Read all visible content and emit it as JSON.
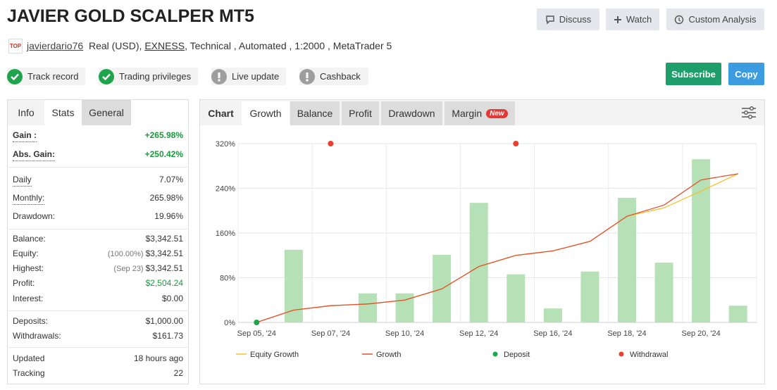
{
  "header": {
    "title": "JAVIER GOLD SCALPER MT5",
    "buttons": [
      "Discuss",
      "Watch",
      "Custom Analysis"
    ]
  },
  "account": {
    "logo": "TOP",
    "user": "javierdario76",
    "details_1": "Real (USD),",
    "broker": "EXNESS",
    "details_2": ", Technical , Automated , 1:2000 , MetaTrader 5"
  },
  "badges": [
    {
      "label": "Track record",
      "verified": true
    },
    {
      "label": "Trading privileges",
      "verified": true
    },
    {
      "label": "Live update",
      "verified": false
    },
    {
      "label": "Cashback",
      "verified": false
    }
  ],
  "actions": [
    "Subscribe",
    "Copy"
  ],
  "stats_tabs": [
    "Info",
    "Stats",
    "General"
  ],
  "stats": [
    [
      {
        "label": "Gain :",
        "value": "+265.98%"
      },
      {
        "label": "Abs. Gain:",
        "value": "+250.42%"
      }
    ],
    [
      {
        "label": "Daily",
        "value": "7.07%"
      },
      {
        "label": "Monthly:",
        "value": "265.98%"
      },
      {
        "label": "Drawdown:",
        "value": "19.96%"
      }
    ],
    [
      {
        "label": "Balance:",
        "value": "$3,342.51"
      },
      {
        "label": "Equity:",
        "note": "(100.00%)",
        "value": "$3,342.51"
      },
      {
        "label": "Highest:",
        "note": "(Sep 23)",
        "value": "$3,342.51"
      },
      {
        "label": "Profit:",
        "value": "$2,504.24"
      },
      {
        "label": "Interest:",
        "value": "$0.00"
      }
    ],
    [
      {
        "label": "Deposits:",
        "value": "$1,000.00"
      },
      {
        "label": "Withdrawals:",
        "value": "$161.73"
      }
    ],
    [
      {
        "label": "Updated",
        "value": "18 hours ago"
      },
      {
        "label": "Tracking",
        "value": "22"
      }
    ]
  ],
  "chart_tabs": [
    "Chart",
    "Growth",
    "Balance",
    "Profit",
    "Drawdown",
    "Margin"
  ],
  "new_badge": "New",
  "chart_data": {
    "type": "bar",
    "categories": [
      "Sep 05, '24",
      null,
      "Sep 07, '24",
      null,
      "Sep 10, '24",
      null,
      "Sep 12, '24",
      null,
      "Sep 16, '24",
      null,
      "Sep 18, '24",
      null,
      "Sep 20, '24",
      null
    ],
    "bars": {
      "color": "#b6e1b6",
      "values": [
        null,
        130,
        null,
        52,
        52,
        121,
        214,
        86,
        25,
        91,
        223,
        107,
        292,
        30
      ]
    },
    "series": [
      {
        "name": "Equity Growth",
        "type": "line",
        "color": "#f2c12e",
        "values": [
          0,
          22,
          30,
          33,
          40,
          60,
          100,
          120,
          128,
          145,
          190,
          205,
          235,
          266
        ]
      },
      {
        "name": "Growth",
        "type": "line",
        "color": "#e0502f",
        "values": [
          0,
          22,
          30,
          33,
          40,
          60,
          100,
          120,
          128,
          145,
          190,
          210,
          255,
          266
        ]
      },
      {
        "name": "Deposit",
        "type": "scatter",
        "color": "#1aa84a",
        "values": [
          0,
          null,
          null,
          null,
          null,
          null,
          null,
          null,
          null,
          null,
          null,
          null,
          null,
          null
        ]
      },
      {
        "name": "Withdrawal",
        "type": "scatter",
        "color": "#e8412f",
        "values": [
          null,
          null,
          320,
          null,
          null,
          null,
          null,
          320,
          null,
          null,
          null,
          null,
          null,
          null
        ]
      }
    ],
    "ylim": [
      0,
      320
    ],
    "yticks": [
      {
        "value": 0,
        "label": "0%"
      },
      {
        "value": 80,
        "label": "80%"
      },
      {
        "value": 160,
        "label": "160%"
      },
      {
        "value": 240,
        "label": "240%"
      },
      {
        "value": 320,
        "label": "320%"
      }
    ],
    "grid": true
  }
}
